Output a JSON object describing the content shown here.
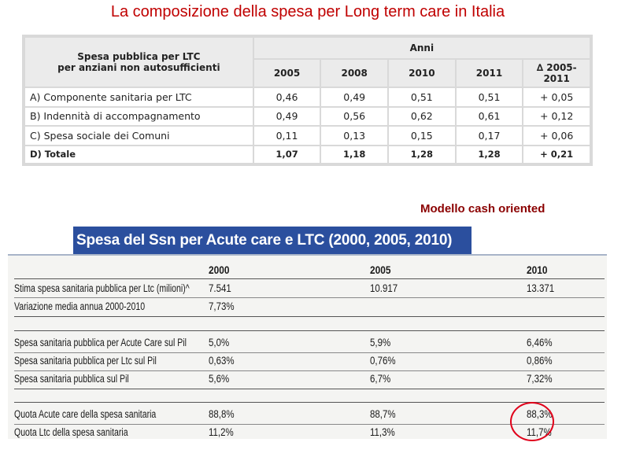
{
  "page_title": "La composizione della spesa per Long term care in Italia",
  "table1": {
    "header_label_line1": "Spesa pubblica per LTC",
    "header_label_line2": "per anziani non autosufficienti",
    "years_header": "Anni",
    "columns": [
      "2005",
      "2008",
      "2010",
      "2011"
    ],
    "delta_header_line1": "∆ 2005-",
    "delta_header_line2": "2011",
    "rows": [
      {
        "label": "A) Componente sanitaria per LTC",
        "values": [
          "0,46",
          "0,49",
          "0,51",
          "0,51"
        ],
        "delta": "+ 0,05"
      },
      {
        "label": "B) Indennità di accompagnamento",
        "values": [
          "0,49",
          "0,56",
          "0,62",
          "0,61"
        ],
        "delta": "+ 0,12"
      },
      {
        "label": "C) Spesa sociale dei Comuni",
        "values": [
          "0,11",
          "0,13",
          "0,15",
          "0,17"
        ],
        "delta": "+ 0,06"
      },
      {
        "label": "D) Totale",
        "values": [
          "1,07",
          "1,18",
          "1,28",
          "1,28"
        ],
        "delta": "+ 0,21"
      }
    ]
  },
  "caption_cash": "Modello cash oriented",
  "table2": {
    "heading": "Spesa del Ssn per Acute care e LTC (2000, 2005, 2010)",
    "columns": [
      "2000",
      "2005",
      "2010"
    ],
    "rows": [
      {
        "label": "Stima spesa sanitaria pubblica per Ltc (milioni)^",
        "values": [
          "7.541",
          "10.917",
          "13.371"
        ]
      },
      {
        "label": "Variazione media annua 2000-2010",
        "values": [
          "7,73%",
          "",
          ""
        ]
      },
      {
        "label": "Spesa sanitaria pubblica per Acute Care sul Pil",
        "values": [
          "5,0%",
          "5,9%",
          "6,46%"
        ]
      },
      {
        "label": "Spesa sanitaria pubblica per Ltc sul Pil",
        "values": [
          "0,63%",
          "0,76%",
          "0,86%"
        ]
      },
      {
        "label": "Spesa sanitaria pubblica sul Pil",
        "values": [
          "5,6%",
          "6,7%",
          "7,32%"
        ]
      },
      {
        "label": "Quota Acute care della spesa sanitaria",
        "values": [
          "88,8%",
          "88,7%",
          "88,3%"
        ]
      },
      {
        "label": "Quota Ltc della spesa sanitaria",
        "values": [
          "11,2%",
          "11,3%",
          "11,7%"
        ]
      }
    ]
  },
  "colors": {
    "title": "#c00000",
    "caption": "#8b0000",
    "heading_bg": "#2b4f9e",
    "highlight_circle": "#e0001a"
  }
}
